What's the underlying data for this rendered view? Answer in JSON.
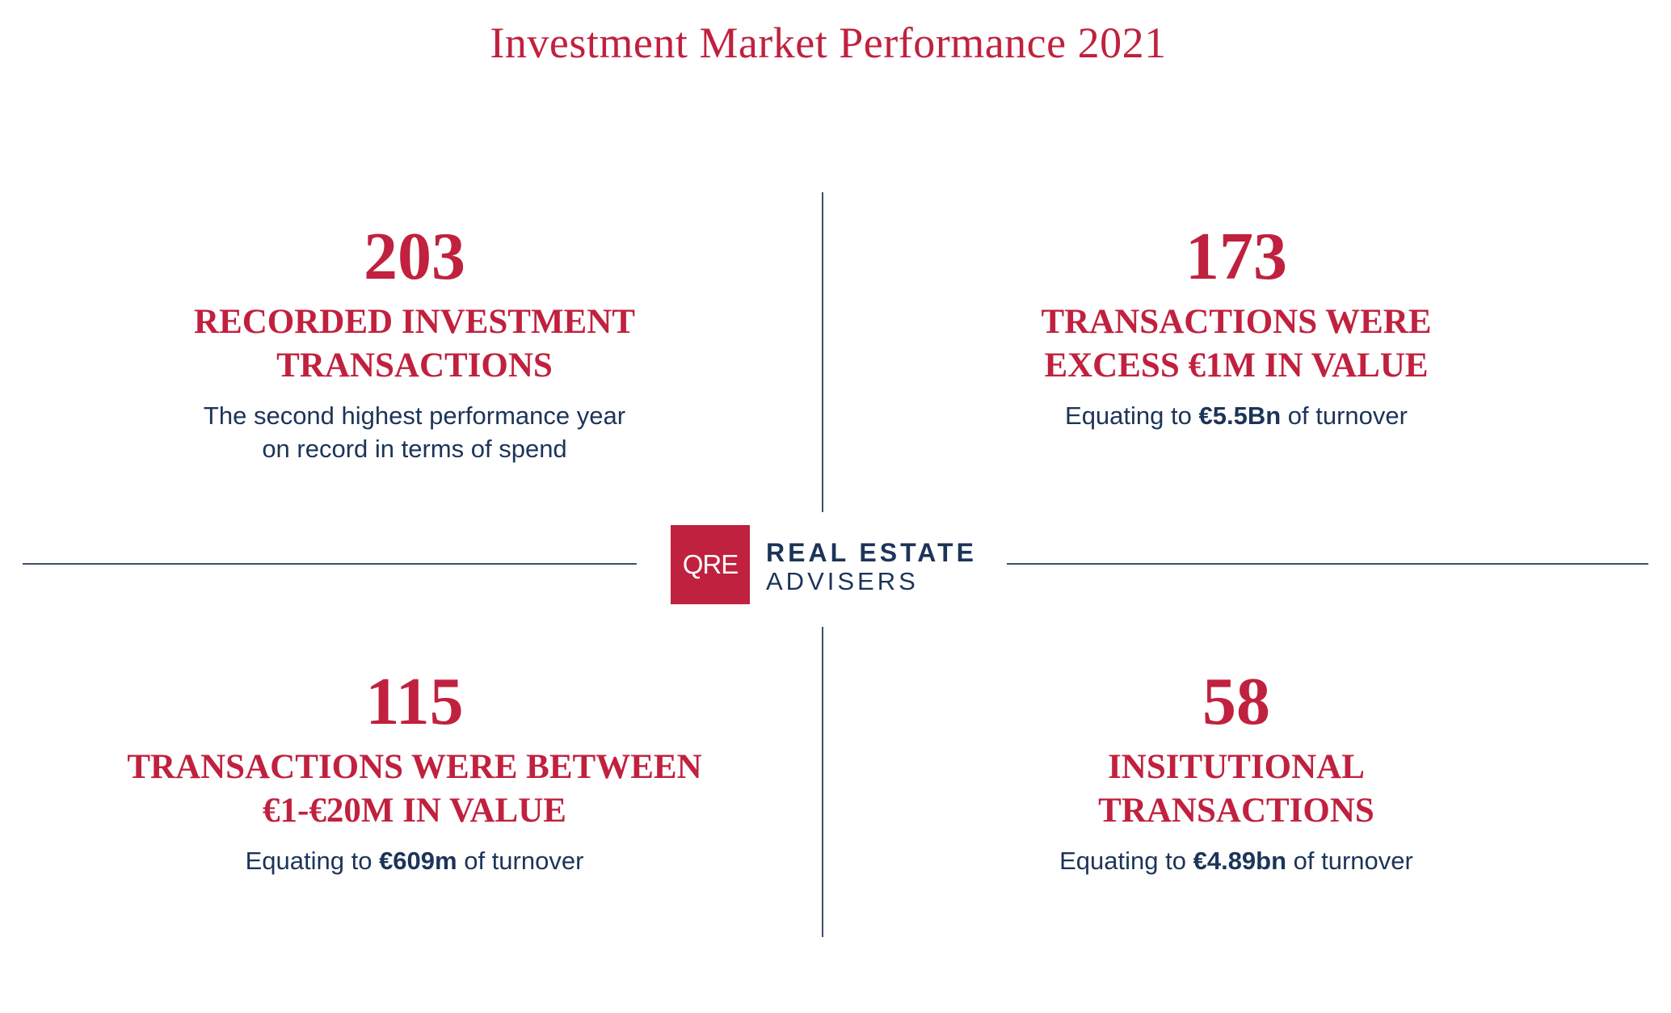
{
  "title": "Investment Market Performance 2021",
  "accent_color": "#c0213e",
  "text_color": "#1c3459",
  "logo": {
    "mark": "QRE",
    "line1": "REAL ESTATE",
    "line2": "ADVISERS"
  },
  "quadrants": [
    {
      "number": "203",
      "heading": "RECORDED INVESTMENT\nTRANSACTIONS",
      "desc_before": "The second highest performance year\non record in terms of spend",
      "desc_bold": "",
      "desc_after": ""
    },
    {
      "number": "173",
      "heading": "TRANSACTIONS WERE\nEXCESS €1M IN VALUE",
      "desc_before": "Equating to ",
      "desc_bold": "€5.5Bn",
      "desc_after": " of turnover"
    },
    {
      "number": "115",
      "heading": "TRANSACTIONS WERE BETWEEN\n€1-€20M IN VALUE",
      "desc_before": "Equating to ",
      "desc_bold": "€609m",
      "desc_after": " of turnover"
    },
    {
      "number": "58",
      "heading": "INSITUTIONAL\nTRANSACTIONS",
      "desc_before": "Equating to ",
      "desc_bold": "€4.89bn",
      "desc_after": " of turnover"
    }
  ]
}
